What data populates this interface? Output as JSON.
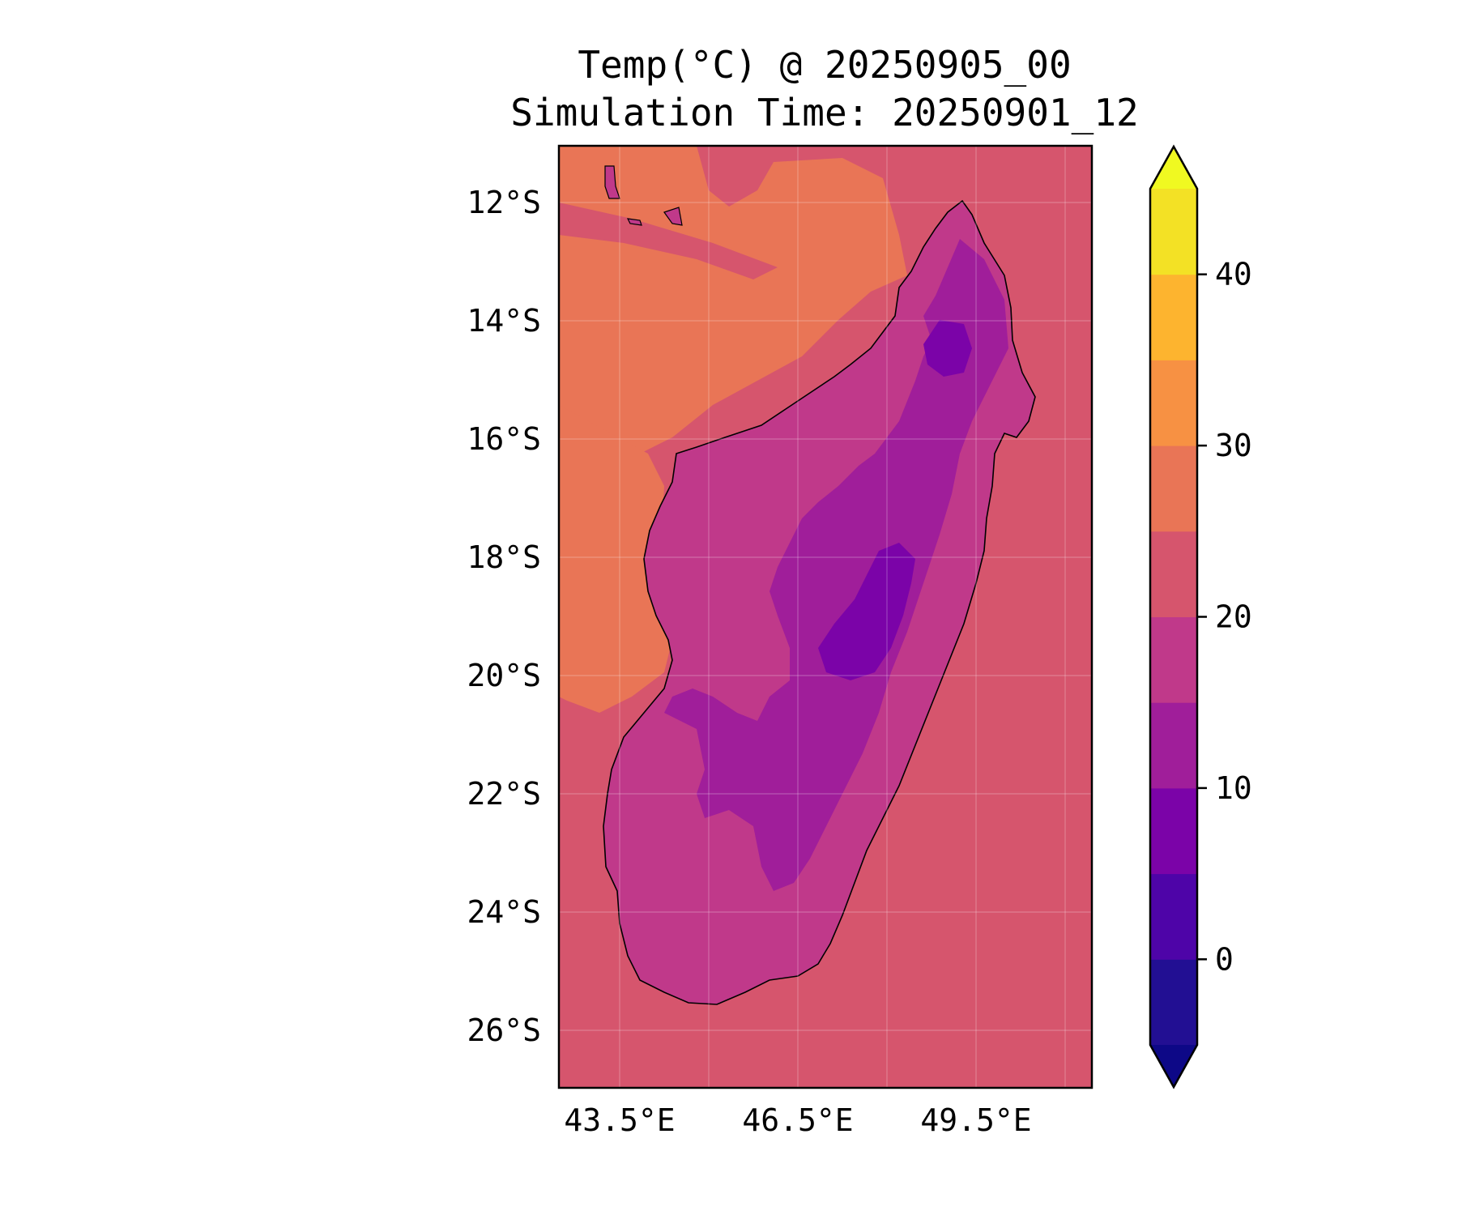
{
  "title": {
    "line1": "Temp(°C) @ 20250905_00",
    "line2": "Simulation Time: 20250901_12"
  },
  "map": {
    "region": "Madagascar",
    "variable": "Temperature",
    "units": "°C",
    "lon_range": [
      42.5,
      51.5
    ],
    "lat_range": [
      -27,
      -11
    ],
    "lat_ticks": [
      "12°S",
      "14°S",
      "16°S",
      "18°S",
      "20°S",
      "22°S",
      "24°S",
      "26°S"
    ],
    "lon_ticks": [
      "43.5°E",
      "46.5°E",
      "49.5°E"
    ],
    "gridlines": true,
    "ocean_colors": {
      "warm": "#e97556",
      "mild": "#d6556d"
    }
  },
  "colorbar": {
    "tick_labels": [
      "0",
      "10",
      "20",
      "30",
      "40"
    ],
    "levels": [
      -5,
      0,
      5,
      10,
      15,
      20,
      25,
      30,
      35,
      40,
      45
    ],
    "colors": [
      "#220f93",
      "#4e04a8",
      "#7b03a8",
      "#a01e9a",
      "#c0398a",
      "#d6556d",
      "#e97556",
      "#f79143",
      "#fdb42f",
      "#f3e125"
    ],
    "under_color": "#0d0887",
    "over_color": "#f0f921",
    "extend": "both"
  }
}
